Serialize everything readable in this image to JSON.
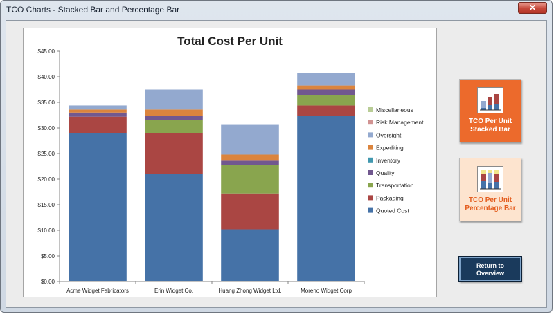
{
  "window": {
    "title": "TCO Charts - Stacked Bar and Percentage Bar",
    "close_glyph": "✕"
  },
  "buttons": {
    "stacked_line1": "TCO Per Unit",
    "stacked_line2": "Stacked Bar",
    "percent_line1": "TCO Per Unit",
    "percent_line2": "Percentage Bar",
    "return_line1": "Return to",
    "return_line2": "Overview"
  },
  "icons": {
    "stacked": "stacked-bar-chart-icon",
    "percent": "percentage-bar-chart-icon",
    "close": "close-icon"
  },
  "colors": {
    "stacked_button": "#ec6a2c",
    "percent_button": "#fde4cf",
    "return_button": "#1a3a5c"
  },
  "chart_data": {
    "type": "bar",
    "stacked": true,
    "title": "Total Cost Per Unit",
    "xlabel": "",
    "ylabel": "",
    "ylim": [
      0,
      45
    ],
    "yticks": [
      "$0.00",
      "$5.00",
      "$10.00",
      "$15.00",
      "$20.00",
      "$25.00",
      "$30.00",
      "$35.00",
      "$40.00",
      "$45.00"
    ],
    "legend_position": "right",
    "grid": false,
    "categories": [
      "Acme Widget Fabricators",
      "Erin Widget Co.",
      "Huang Zhong Widget Ltd.",
      "Moreno Widget Corp"
    ],
    "series": [
      {
        "name": "Quoted Cost",
        "color": "#4572a7",
        "values": [
          29.0,
          21.0,
          10.2,
          32.4
        ]
      },
      {
        "name": "Packaging",
        "color": "#aa4643",
        "values": [
          3.2,
          8.0,
          7.0,
          2.0
        ]
      },
      {
        "name": "Transportation",
        "color": "#89a54e",
        "values": [
          0.0,
          2.6,
          5.6,
          2.0
        ]
      },
      {
        "name": "Quality",
        "color": "#71588f",
        "values": [
          0.8,
          0.8,
          0.8,
          1.1
        ]
      },
      {
        "name": "Inventory",
        "color": "#4198af",
        "values": [
          0.0,
          0.0,
          0.0,
          0.0
        ]
      },
      {
        "name": "Expediting",
        "color": "#db843d",
        "values": [
          0.6,
          1.2,
          1.2,
          0.8
        ]
      },
      {
        "name": "Oversight",
        "color": "#93a9cf",
        "values": [
          0.8,
          3.9,
          5.8,
          2.5
        ]
      },
      {
        "name": "Risk Management",
        "color": "#d19392",
        "values": [
          0.0,
          0.0,
          0.0,
          0.0
        ]
      },
      {
        "name": "Miscellaneous",
        "color": "#b9cd96",
        "values": [
          0.0,
          0.0,
          0.0,
          0.0
        ]
      }
    ]
  }
}
